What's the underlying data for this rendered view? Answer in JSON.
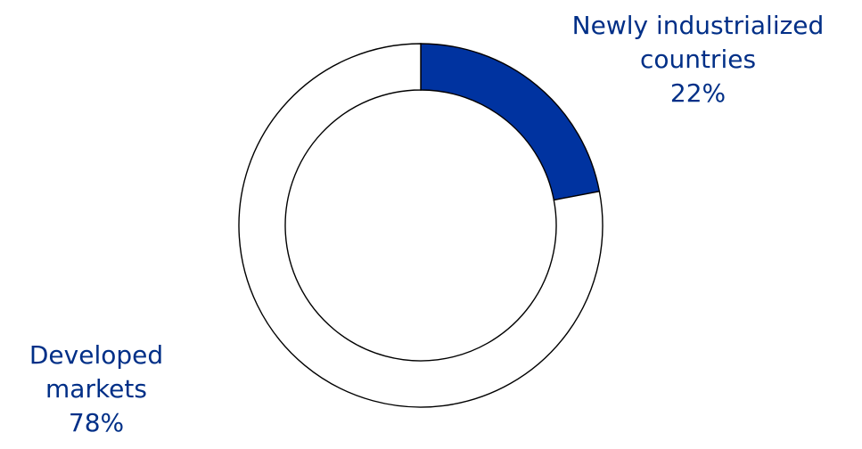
{
  "chart_data": {
    "type": "pie",
    "subtype": "donut",
    "start": "12 o'clock, clockwise",
    "slices": [
      {
        "label_lines": [
          "Newly industrialized",
          "countries"
        ],
        "value": 22,
        "value_label": "22%",
        "fill": "#0033a0"
      },
      {
        "label_lines": [
          "Developed",
          "markets"
        ],
        "value": 78,
        "value_label": "78%",
        "fill": "#ffffff"
      }
    ],
    "label_color": "#002f87",
    "stroke_color": "#000000"
  }
}
